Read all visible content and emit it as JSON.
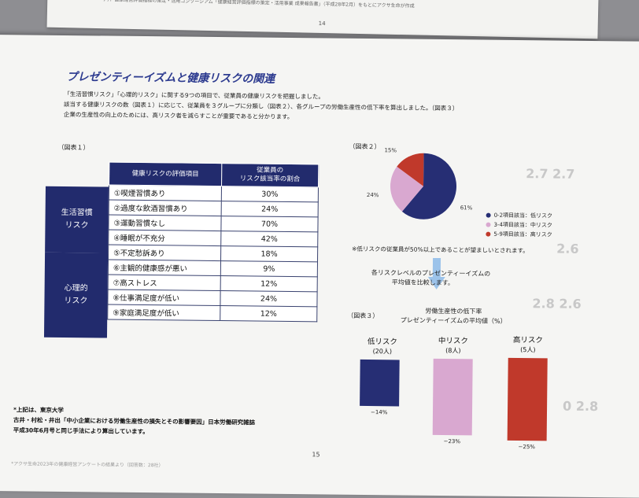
{
  "prev_page": {
    "header": "テ）．健康経営評価指標の策定・活用コンソーシアム「健康経営評価指標の策定・活用事業 成果報告書」（平成28年2月）をもとにアクサ生命が作成",
    "page_number": "14"
  },
  "title": "プレゼンティーイズムと健康リスクの関連",
  "intro": [
    "「生活習慣リスク」「心理的リスク」に関する9つの項目で、従業員の健康リスクを把握しました。",
    "該当する健康リスクの数（図表１）に応じて、従業員を３グループに分類し（図表２）、各グループの労働生産性の低下率を算出しました。（図表３）",
    "企業の生産性の向上のためには、高リスク者を減らすことが重要であると分かります。"
  ],
  "fig1": {
    "label": "（図表１）",
    "col1": "健康リスクの評価項目",
    "col2a": "従業員の",
    "col2b": "リスク該当率の割合",
    "cat1a": "生活習慣",
    "cat1b": "リスク",
    "cat2a": "心理的",
    "cat2b": "リスク",
    "rows": [
      {
        "item": "①喫煙習慣あり",
        "value": "30%"
      },
      {
        "item": "②過度な飲酒習慣あり",
        "value": "24%"
      },
      {
        "item": "③運動習慣なし",
        "value": "70%"
      },
      {
        "item": "④睡眠が不充分",
        "value": "42%"
      },
      {
        "item": "⑤不定愁訴あり",
        "value": "18%"
      },
      {
        "item": "⑥主観的健康感が悪い",
        "value": "9%"
      },
      {
        "item": "⑦高ストレス",
        "value": "12%"
      },
      {
        "item": "⑧仕事満足度が低い",
        "value": "24%"
      },
      {
        "item": "⑨家庭満足度が低い",
        "value": "12%"
      }
    ]
  },
  "fig2": {
    "label": "（図表２）",
    "slices": [
      {
        "label": "61%",
        "value": 61,
        "color": "#262e74"
      },
      {
        "label": "24%",
        "value": 24,
        "color": "#d9a8d0"
      },
      {
        "label": "15%",
        "value": 15,
        "color": "#c0392b"
      }
    ],
    "legend": [
      {
        "text": "0-2項目該当：低リスク",
        "color": "#262e74"
      },
      {
        "text": "3-4項目該当：中リスク",
        "color": "#d9a8d0"
      },
      {
        "text": "5-9項目該当：高リスク",
        "color": "#c0392b"
      }
    ],
    "note": "※低リスクの従業員が50%以上であることが望ましいとされます。"
  },
  "compare": {
    "line1": "各リスクレベルのプレゼンティーイズムの",
    "line2": "平均値を比較します。"
  },
  "fig3": {
    "label": "（図表３）",
    "title1": "労働生産性の低下率",
    "title2": "プレゼンティーイズムの平均値（%）",
    "bars": [
      {
        "name": "低リスク",
        "count": "(20人)",
        "value": "−14%",
        "pct": 14,
        "color": "#262e74"
      },
      {
        "name": "中リスク",
        "count": "(8人)",
        "value": "−23%",
        "pct": 23,
        "color": "#d9a8d0"
      },
      {
        "name": "高リスク",
        "count": "(5人)",
        "value": "−25%",
        "pct": 25,
        "color": "#c0392b"
      }
    ]
  },
  "source": {
    "line1": "*上記は、東京大学",
    "line2": "古井・村松・井出「中小企業における労働生産性の損失とその影響要因」日本労働研究雑誌",
    "line3": "平成30年6月号と同じ手法により算出しています。"
  },
  "page_number": "15",
  "footer": "*アクサ生命2023年の健康経営アンケートの結果より（回答数：28社）"
}
